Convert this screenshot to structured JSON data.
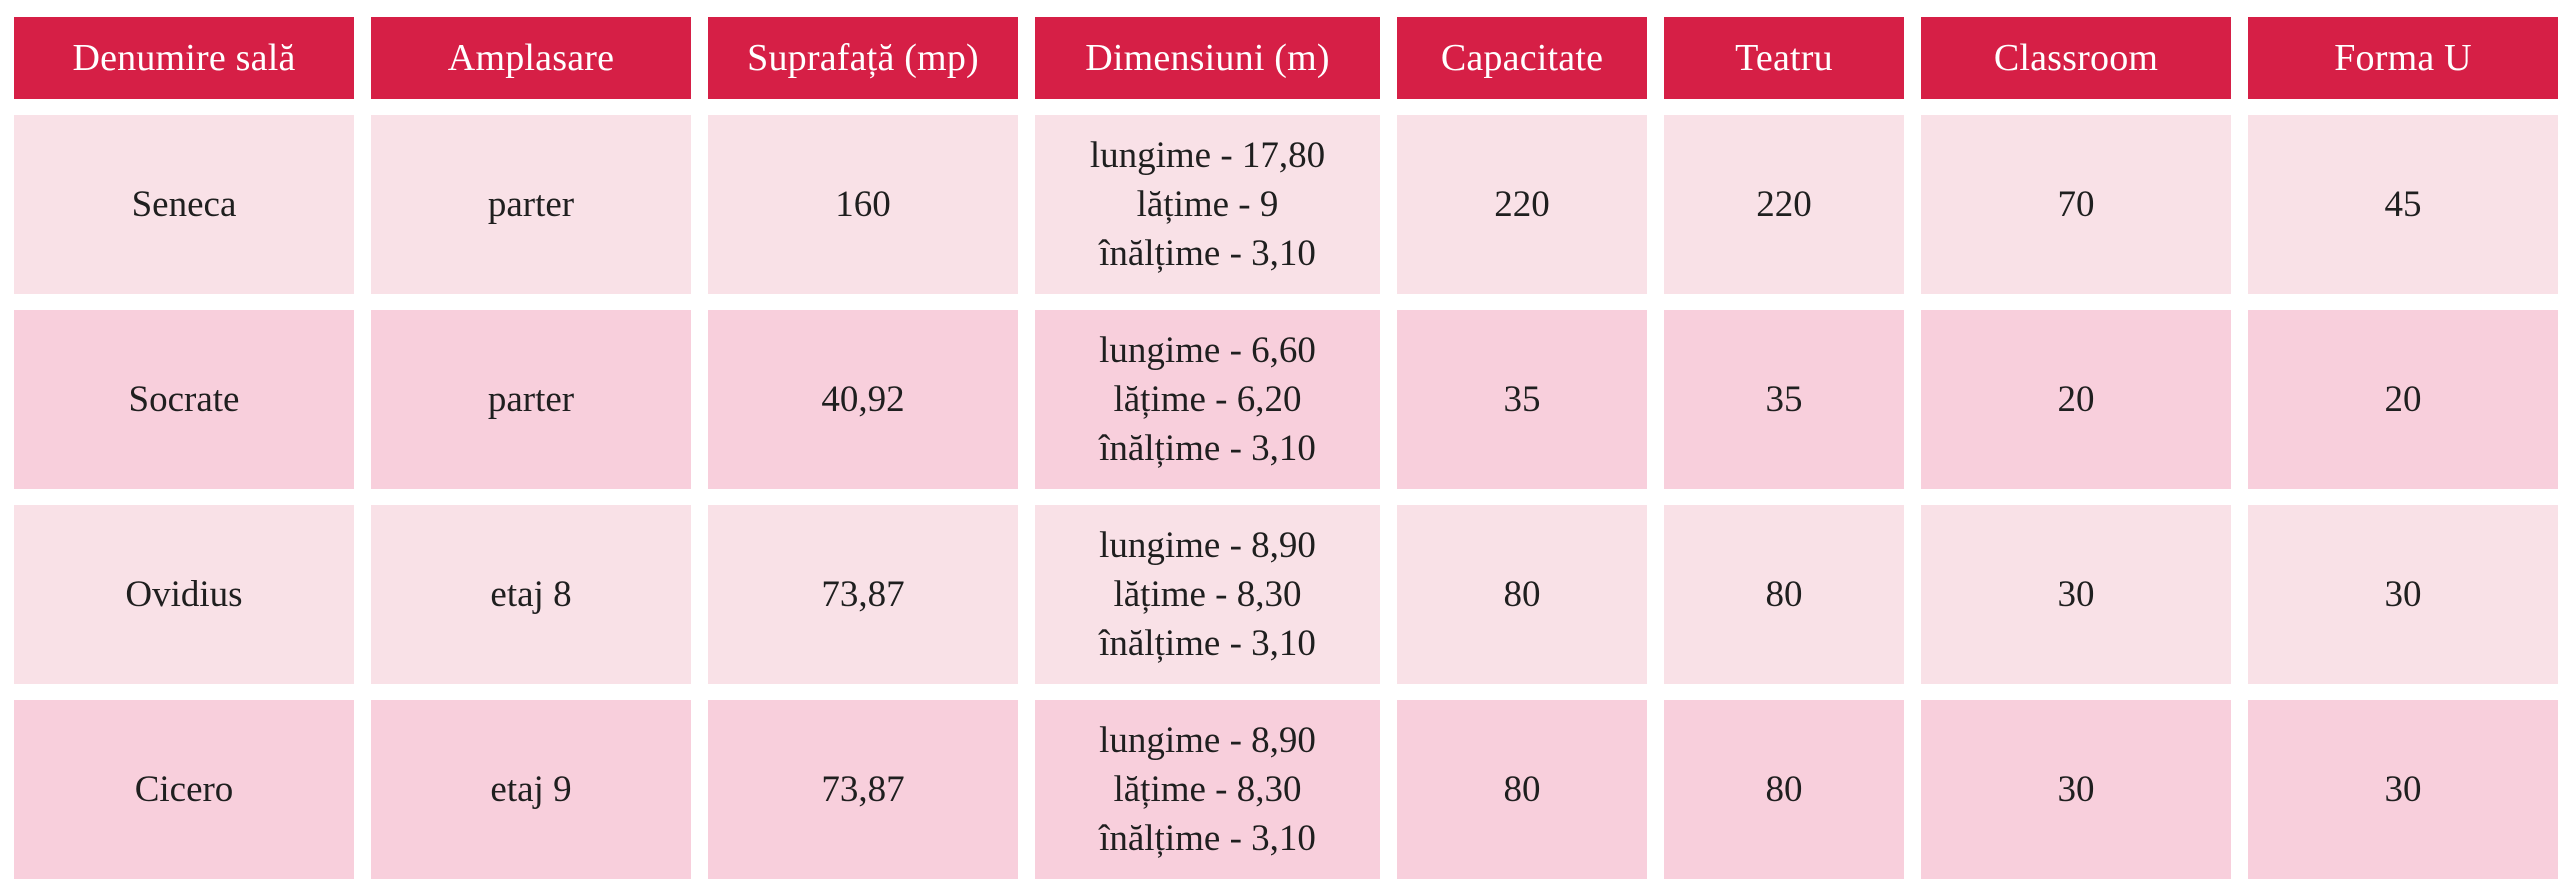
{
  "table": {
    "headers": [
      "Denumire sală",
      "Amplasare",
      "Suprafață (mp)",
      "Dimensiuni (m)",
      "Capacitate",
      "Teatru",
      "Classroom",
      "Forma U"
    ],
    "rows": [
      {
        "name": "Seneca",
        "location": "parter",
        "area": "160",
        "dimensions": [
          "lungime - 17,80",
          "lățime - 9",
          "înălțime - 3,10"
        ],
        "capacity": "220",
        "theatre": "220",
        "classroom": "70",
        "u_shape": "45"
      },
      {
        "name": "Socrate",
        "location": "parter",
        "area": "40,92",
        "dimensions": [
          "lungime - 6,60",
          "lățime - 6,20",
          "înălțime - 3,10"
        ],
        "capacity": "35",
        "theatre": "35",
        "classroom": "20",
        "u_shape": "20"
      },
      {
        "name": "Ovidius",
        "location": "etaj 8",
        "area": "73,87",
        "dimensions": [
          "lungime - 8,90",
          "lățime - 8,30",
          "înălțime - 3,10"
        ],
        "capacity": "80",
        "theatre": "80",
        "classroom": "30",
        "u_shape": "30"
      },
      {
        "name": "Cicero",
        "location": "etaj 9",
        "area": "73,87",
        "dimensions": [
          "lungime - 8,90",
          "lățime - 8,30",
          "înălțime - 3,10"
        ],
        "capacity": "80",
        "theatre": "80",
        "classroom": "30",
        "u_shape": "30"
      }
    ]
  },
  "colors": {
    "header_bg": "#d61f46",
    "header_text": "#ffffff",
    "row_light": "#f9e1e7",
    "row_dark": "#f8cfdc"
  }
}
